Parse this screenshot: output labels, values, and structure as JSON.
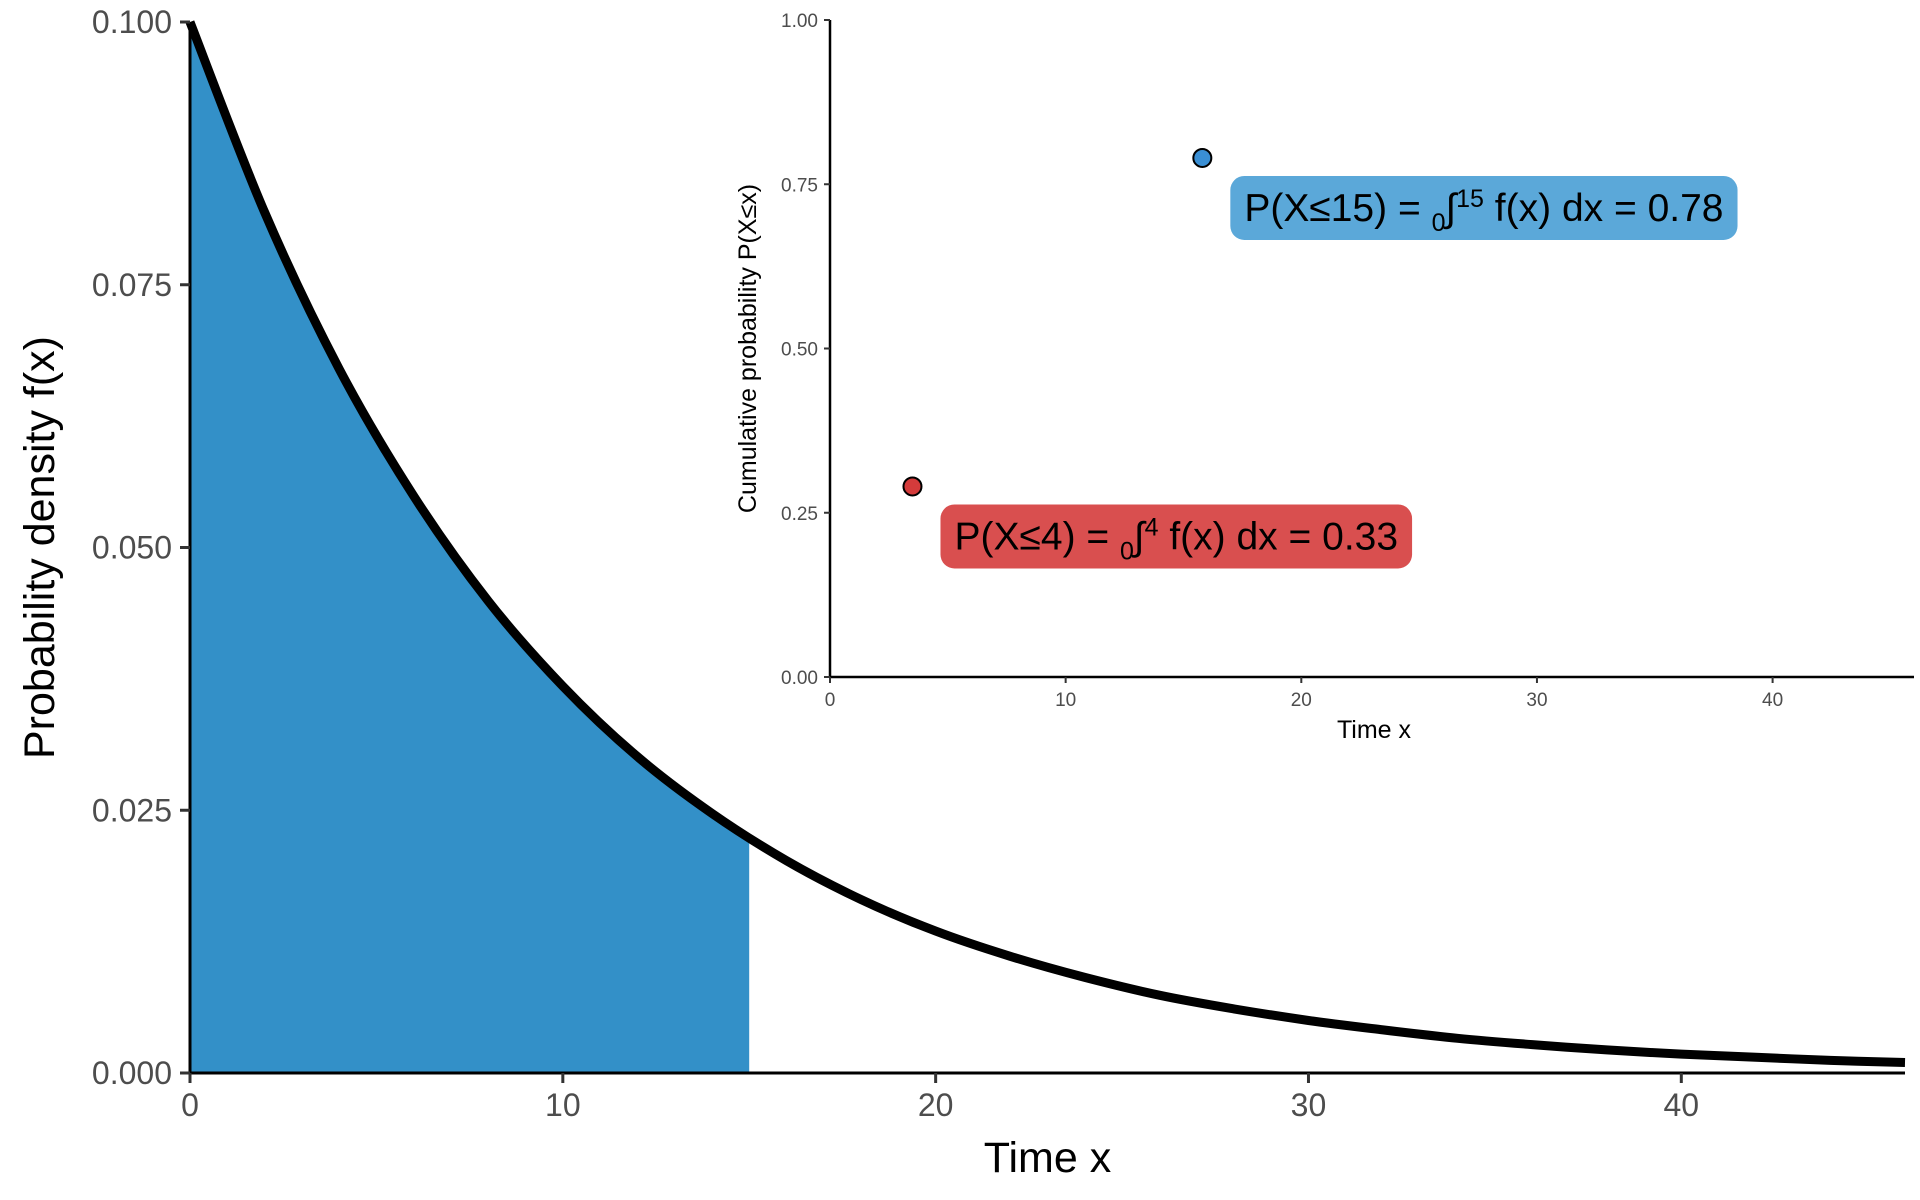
{
  "chart_data": [
    {
      "type": "area",
      "xlabel": "Time x",
      "ylabel": "Probability density f(x)",
      "xlim": [
        0,
        46
      ],
      "ylim": [
        0,
        0.1
      ],
      "x_ticks": [
        "0",
        "10",
        "20",
        "30",
        "40"
      ],
      "y_ticks": [
        "0.000",
        "0.025",
        "0.050",
        "0.075",
        "0.100"
      ],
      "x_tick_values": [
        0,
        10,
        20,
        30,
        40
      ],
      "y_tick_values": [
        0,
        0.025,
        0.05,
        0.075,
        0.1
      ],
      "series": [
        {
          "x": [
            0,
            2,
            4,
            6,
            8,
            10,
            12,
            14,
            16,
            18,
            20,
            22,
            24,
            26,
            28,
            30,
            32,
            34,
            36,
            38,
            40,
            42,
            44,
            46
          ],
          "y": [
            0.1,
            0.0819,
            0.067,
            0.0549,
            0.0449,
            0.0368,
            0.0301,
            0.0247,
            0.0202,
            0.0165,
            0.0135,
            0.0111,
            0.0091,
            0.0074,
            0.0061,
            0.005,
            0.0041,
            0.0033,
            0.0027,
            0.0022,
            0.0018,
            0.0015,
            0.0012,
            0.001
          ]
        }
      ],
      "shaded_region": {
        "x_from": 0,
        "x_to": 15,
        "color": "#3390C8"
      },
      "line_color": "#000000"
    },
    {
      "type": "scatter",
      "xlabel": "Time x",
      "ylabel": "Cumulative probability P(X≤x)",
      "xlim": [
        0,
        46
      ],
      "ylim": [
        0,
        1
      ],
      "x_ticks": [
        "0",
        "10",
        "20",
        "30",
        "40"
      ],
      "y_ticks": [
        "0.00",
        "0.25",
        "0.50",
        "0.75",
        "1.00"
      ],
      "x_tick_values": [
        0,
        10,
        20,
        30,
        40
      ],
      "y_tick_values": [
        0,
        0.25,
        0.5,
        0.75,
        1
      ],
      "points": [
        {
          "x": 3.5,
          "y": 0.29,
          "color": "#D43B3B",
          "label_bg": "#D94F4F",
          "label": {
            "pre": "P(X≤4) = ",
            "lower": "0",
            "sym": "∫",
            "upper": "4",
            "post": " f(x) dx = 0.33"
          }
        },
        {
          "x": 15.8,
          "y": 0.79,
          "color": "#3A8FD4",
          "label_bg": "#5BA8D9",
          "label": {
            "pre": "P(X≤15) = ",
            "lower": "0",
            "sym": "∫",
            "upper": "15",
            "post": " f(x) dx = 0.78"
          }
        }
      ]
    }
  ]
}
